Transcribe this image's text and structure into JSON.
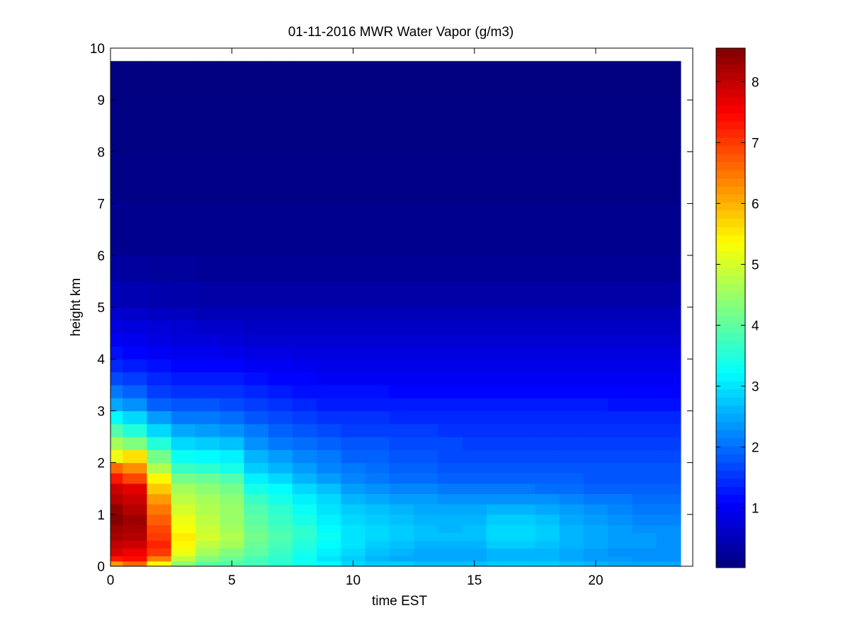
{
  "chart_data": {
    "type": "heatmap",
    "title": "01-11-2016 MWR Water Vapor (g/m3)",
    "xlabel": "time EST",
    "ylabel": "height km",
    "xlim": [
      0,
      24
    ],
    "ylim": [
      0,
      10
    ],
    "x_ticks": [
      0,
      5,
      10,
      15,
      20
    ],
    "y_ticks": [
      0,
      1,
      2,
      3,
      4,
      5,
      6,
      7,
      8,
      9,
      10
    ],
    "colorbar": {
      "colormap": "jet",
      "range": [
        0.02,
        8.55
      ],
      "ticks": [
        1,
        2,
        3,
        4,
        5,
        6,
        7,
        8
      ]
    },
    "x_bins": [
      0,
      0.5,
      1.5,
      2.5,
      3.5,
      4.5,
      5.5,
      6.5,
      7.5,
      8.5,
      9.5,
      10.5,
      11.5,
      12.5,
      13.5,
      14.5,
      15.5,
      16.5,
      17.5,
      18.5,
      19.5,
      20.5,
      21.5,
      22.5,
      23.5
    ],
    "y_bins": [
      0,
      0.1,
      0.2,
      0.35,
      0.5,
      0.65,
      0.8,
      1.0,
      1.2,
      1.4,
      1.6,
      1.8,
      2.0,
      2.25,
      2.5,
      2.75,
      3.0,
      3.25,
      3.5,
      3.75,
      4.0,
      4.25,
      4.5,
      4.75,
      5.0,
      5.5,
      6.0,
      7.0,
      8.0,
      9.0,
      9.75
    ],
    "values": [
      [
        6.2,
        6.6,
        5.4,
        4.4,
        4.0,
        3.9,
        3.8,
        3.6,
        3.4,
        3.2,
        2.9,
        2.8,
        2.8,
        2.7,
        2.7,
        2.7,
        2.8,
        2.8,
        2.8,
        2.7,
        2.6,
        2.5,
        2.5,
        2.5
      ],
      [
        7.3,
        7.4,
        6.4,
        4.8,
        4.3,
        4.1,
        3.8,
        3.6,
        3.3,
        3.0,
        2.8,
        2.6,
        2.5,
        2.5,
        2.5,
        2.5,
        2.6,
        2.6,
        2.6,
        2.5,
        2.4,
        2.4,
        2.3,
        2.3
      ],
      [
        7.8,
        7.6,
        7.0,
        5.2,
        4.6,
        4.3,
        4.0,
        3.7,
        3.4,
        3.1,
        2.9,
        2.7,
        2.6,
        2.5,
        2.5,
        2.5,
        2.6,
        2.6,
        2.6,
        2.5,
        2.4,
        2.3,
        2.3,
        2.3
      ],
      [
        8.0,
        7.9,
        7.2,
        5.4,
        4.8,
        4.6,
        4.1,
        3.8,
        3.5,
        3.2,
        3.0,
        2.8,
        2.7,
        2.6,
        2.6,
        2.6,
        2.8,
        2.8,
        2.7,
        2.6,
        2.5,
        2.4,
        2.4,
        2.3
      ],
      [
        8.2,
        8.1,
        7.0,
        5.5,
        5.0,
        4.7,
        4.2,
        3.9,
        3.6,
        3.3,
        3.0,
        2.9,
        2.8,
        2.7,
        2.7,
        2.7,
        2.9,
        2.9,
        2.8,
        2.6,
        2.5,
        2.4,
        2.4,
        2.3
      ],
      [
        8.3,
        8.2,
        6.9,
        5.3,
        4.9,
        4.6,
        4.1,
        3.8,
        3.6,
        3.2,
        3.0,
        2.9,
        2.8,
        2.7,
        2.6,
        2.7,
        2.9,
        2.9,
        2.8,
        2.6,
        2.5,
        2.4,
        2.3,
        2.3
      ],
      [
        8.5,
        8.3,
        6.7,
        5.2,
        4.8,
        4.5,
        4.0,
        3.7,
        3.4,
        3.1,
        2.9,
        2.8,
        2.7,
        2.6,
        2.6,
        2.6,
        2.8,
        2.8,
        2.7,
        2.5,
        2.4,
        2.3,
        2.2,
        2.2
      ],
      [
        8.4,
        8.1,
        6.5,
        5.0,
        4.7,
        4.5,
        3.9,
        3.6,
        3.3,
        3.0,
        2.8,
        2.7,
        2.6,
        2.5,
        2.5,
        2.5,
        2.6,
        2.6,
        2.5,
        2.4,
        2.3,
        2.2,
        2.1,
        2.1
      ],
      [
        8.1,
        7.9,
        6.2,
        4.8,
        4.6,
        4.4,
        3.7,
        3.4,
        3.1,
        2.9,
        2.6,
        2.5,
        2.4,
        2.4,
        2.3,
        2.3,
        2.3,
        2.3,
        2.3,
        2.2,
        2.1,
        2.1,
        2.0,
        2.0
      ],
      [
        7.9,
        7.7,
        5.8,
        4.6,
        4.4,
        4.2,
        3.4,
        3.2,
        2.9,
        2.7,
        2.4,
        2.3,
        2.2,
        2.2,
        2.1,
        2.1,
        2.1,
        2.1,
        2.0,
        2.0,
        1.9,
        1.9,
        1.9,
        1.9
      ],
      [
        7.3,
        6.9,
        5.4,
        4.2,
        4.1,
        3.9,
        3.1,
        2.9,
        2.6,
        2.4,
        2.2,
        2.1,
        2.0,
        2.0,
        1.9,
        1.9,
        1.9,
        1.9,
        1.9,
        1.9,
        1.8,
        1.8,
        1.8,
        1.8
      ],
      [
        6.6,
        6.3,
        4.7,
        3.7,
        3.6,
        3.4,
        2.8,
        2.6,
        2.4,
        2.2,
        2.1,
        2.0,
        1.9,
        1.9,
        1.8,
        1.8,
        1.8,
        1.8,
        1.8,
        1.8,
        1.8,
        1.8,
        1.8,
        1.8
      ],
      [
        5.2,
        5.6,
        4.2,
        3.3,
        3.2,
        3.1,
        2.6,
        2.4,
        2.2,
        2.1,
        1.9,
        1.9,
        1.8,
        1.8,
        1.7,
        1.7,
        1.7,
        1.7,
        1.7,
        1.7,
        1.7,
        1.7,
        1.7,
        1.7
      ],
      [
        4.6,
        4.3,
        3.5,
        2.9,
        2.8,
        2.7,
        2.3,
        2.1,
        2.0,
        1.9,
        1.8,
        1.8,
        1.7,
        1.7,
        1.7,
        1.6,
        1.6,
        1.6,
        1.6,
        1.6,
        1.6,
        1.6,
        1.6,
        1.6
      ],
      [
        3.9,
        3.5,
        2.9,
        2.5,
        2.4,
        2.3,
        2.1,
        1.9,
        1.8,
        1.7,
        1.6,
        1.6,
        1.6,
        1.6,
        1.5,
        1.5,
        1.5,
        1.5,
        1.5,
        1.5,
        1.5,
        1.5,
        1.5,
        1.5
      ],
      [
        3.2,
        2.9,
        2.4,
        2.1,
        2.1,
        2.0,
        1.8,
        1.7,
        1.6,
        1.5,
        1.5,
        1.5,
        1.4,
        1.4,
        1.4,
        1.4,
        1.4,
        1.4,
        1.4,
        1.4,
        1.4,
        1.4,
        1.4,
        1.4
      ],
      [
        2.5,
        2.3,
        1.9,
        1.8,
        1.8,
        1.7,
        1.6,
        1.5,
        1.4,
        1.3,
        1.3,
        1.3,
        1.3,
        1.3,
        1.3,
        1.3,
        1.3,
        1.3,
        1.3,
        1.3,
        1.3,
        1.2,
        1.2,
        1.2
      ],
      [
        2.1,
        1.9,
        1.6,
        1.5,
        1.5,
        1.5,
        1.4,
        1.3,
        1.2,
        1.2,
        1.2,
        1.2,
        1.1,
        1.1,
        1.1,
        1.1,
        1.1,
        1.1,
        1.1,
        1.1,
        1.1,
        1.1,
        1.1,
        1.1
      ],
      [
        1.7,
        1.6,
        1.4,
        1.3,
        1.3,
        1.3,
        1.2,
        1.1,
        1.1,
        1.0,
        1.0,
        1.0,
        1.0,
        1.0,
        1.0,
        1.0,
        1.0,
        1.0,
        1.0,
        1.0,
        1.0,
        1.0,
        1.0,
        1.0
      ],
      [
        1.4,
        1.3,
        1.2,
        1.1,
        1.1,
        1.1,
        1.0,
        1.0,
        0.95,
        0.9,
        0.9,
        0.9,
        0.9,
        0.9,
        0.9,
        0.9,
        0.9,
        0.9,
        0.9,
        0.9,
        0.9,
        0.9,
        0.9,
        0.9
      ],
      [
        1.2,
        1.1,
        1.0,
        0.95,
        0.95,
        0.9,
        0.85,
        0.85,
        0.8,
        0.8,
        0.8,
        0.8,
        0.8,
        0.8,
        0.8,
        0.8,
        0.8,
        0.8,
        0.8,
        0.8,
        0.8,
        0.8,
        0.8,
        0.8
      ],
      [
        1.0,
        0.95,
        0.85,
        0.8,
        0.8,
        0.75,
        0.7,
        0.7,
        0.7,
        0.7,
        0.7,
        0.7,
        0.7,
        0.7,
        0.7,
        0.7,
        0.7,
        0.7,
        0.7,
        0.7,
        0.7,
        0.7,
        0.7,
        0.7
      ],
      [
        0.85,
        0.8,
        0.75,
        0.7,
        0.65,
        0.65,
        0.6,
        0.6,
        0.6,
        0.6,
        0.6,
        0.6,
        0.6,
        0.6,
        0.6,
        0.6,
        0.6,
        0.6,
        0.6,
        0.6,
        0.6,
        0.6,
        0.6,
        0.6
      ],
      [
        0.7,
        0.65,
        0.6,
        0.55,
        0.5,
        0.5,
        0.5,
        0.5,
        0.5,
        0.5,
        0.5,
        0.5,
        0.5,
        0.5,
        0.5,
        0.5,
        0.5,
        0.5,
        0.5,
        0.5,
        0.5,
        0.5,
        0.5,
        0.5
      ],
      [
        0.5,
        0.45,
        0.4,
        0.38,
        0.35,
        0.35,
        0.35,
        0.35,
        0.35,
        0.35,
        0.35,
        0.35,
        0.35,
        0.35,
        0.35,
        0.35,
        0.35,
        0.35,
        0.35,
        0.35,
        0.35,
        0.35,
        0.35,
        0.35
      ],
      [
        0.3,
        0.28,
        0.25,
        0.24,
        0.22,
        0.22,
        0.22,
        0.22,
        0.22,
        0.22,
        0.22,
        0.22,
        0.22,
        0.22,
        0.22,
        0.22,
        0.22,
        0.22,
        0.22,
        0.22,
        0.22,
        0.22,
        0.22,
        0.22
      ],
      [
        0.15,
        0.15,
        0.15,
        0.15,
        0.15,
        0.15,
        0.15,
        0.15,
        0.15,
        0.15,
        0.15,
        0.15,
        0.15,
        0.15,
        0.15,
        0.15,
        0.15,
        0.15,
        0.15,
        0.15,
        0.15,
        0.15,
        0.15,
        0.15
      ],
      [
        0.08,
        0.08,
        0.08,
        0.08,
        0.08,
        0.08,
        0.08,
        0.08,
        0.08,
        0.08,
        0.08,
        0.08,
        0.08,
        0.08,
        0.08,
        0.08,
        0.08,
        0.08,
        0.08,
        0.08,
        0.08,
        0.08,
        0.08,
        0.08
      ],
      [
        0.04,
        0.04,
        0.04,
        0.04,
        0.04,
        0.04,
        0.04,
        0.04,
        0.04,
        0.04,
        0.04,
        0.04,
        0.04,
        0.04,
        0.04,
        0.04,
        0.04,
        0.04,
        0.04,
        0.04,
        0.04,
        0.04,
        0.04,
        0.04
      ],
      [
        0.02,
        0.02,
        0.02,
        0.02,
        0.02,
        0.02,
        0.02,
        0.02,
        0.02,
        0.02,
        0.02,
        0.02,
        0.02,
        0.02,
        0.02,
        0.02,
        0.02,
        0.02,
        0.02,
        0.02,
        0.02,
        0.02,
        0.02,
        0.02
      ]
    ]
  }
}
